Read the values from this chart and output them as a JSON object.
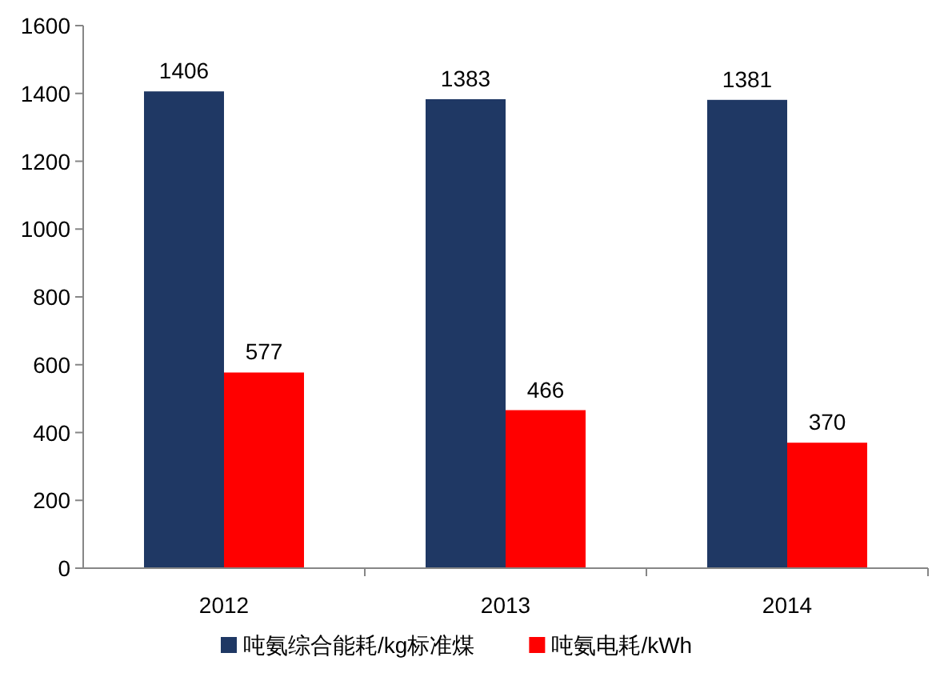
{
  "chart_data": {
    "type": "bar",
    "categories": [
      "2012",
      "2013",
      "2014"
    ],
    "series": [
      {
        "name": "吨氨综合能耗/kg标准煤",
        "color": "#1f3864",
        "values": [
          1406,
          1383,
          1381
        ]
      },
      {
        "name": "吨氨电耗/kWh",
        "color": "#ff0000",
        "values": [
          577,
          466,
          370
        ]
      }
    ],
    "ylim": [
      0,
      1600
    ],
    "yticks": [
      0,
      200,
      400,
      600,
      800,
      1000,
      1200,
      1400,
      1600
    ],
    "data_labels": true,
    "legend": "bottom"
  }
}
